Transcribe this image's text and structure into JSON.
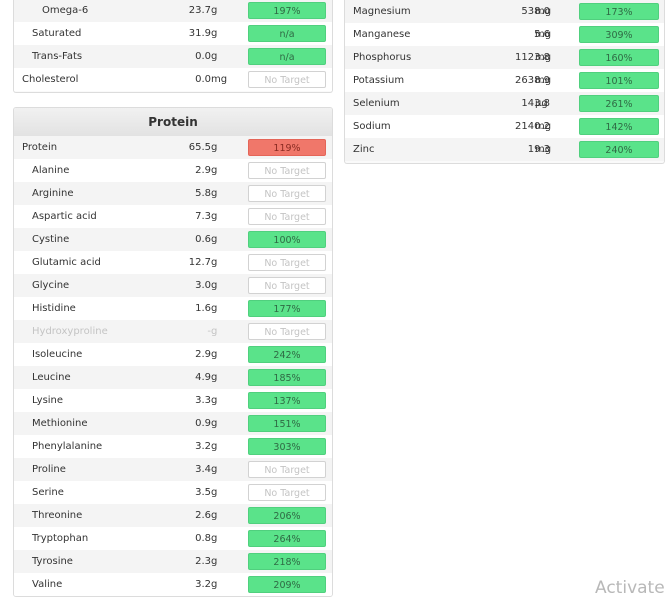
{
  "colors": {
    "green": "#5ae38a",
    "red": "#f0776a",
    "none": "#ffffff"
  },
  "fats": [
    {
      "name": "Omega-6",
      "amount": "23.7",
      "unit": "g",
      "target": "197%",
      "status": "green",
      "level": "subsub"
    },
    {
      "name": "Saturated",
      "amount": "31.9",
      "unit": "g",
      "target": "n/a",
      "status": "green",
      "level": "sub"
    },
    {
      "name": "Trans-Fats",
      "amount": "0.0",
      "unit": "g",
      "target": "n/a",
      "status": "green",
      "level": "sub"
    },
    {
      "name": "Cholesterol",
      "amount": "0.0",
      "unit": "mg",
      "target": "No Target",
      "status": "none",
      "level": "top"
    }
  ],
  "minerals": [
    {
      "name": "Magnesium",
      "amount": "538.0",
      "unit": "mg",
      "target": "173%",
      "status": "green"
    },
    {
      "name": "Manganese",
      "amount": "5.6",
      "unit": "mg",
      "target": "309%",
      "status": "green"
    },
    {
      "name": "Phosphorus",
      "amount": "1123.8",
      "unit": "mg",
      "target": "160%",
      "status": "green"
    },
    {
      "name": "Potassium",
      "amount": "2638.9",
      "unit": "mg",
      "target": "101%",
      "status": "green"
    },
    {
      "name": "Selenium",
      "amount": "143.8",
      "unit": "µg",
      "target": "261%",
      "status": "green"
    },
    {
      "name": "Sodium",
      "amount": "2140.2",
      "unit": "mg",
      "target": "142%",
      "status": "green"
    },
    {
      "name": "Zinc",
      "amount": "19.3",
      "unit": "mg",
      "target": "240%",
      "status": "green"
    }
  ],
  "protein": {
    "title": "Protein",
    "rows": [
      {
        "name": "Protein",
        "amount": "65.5",
        "unit": "g",
        "target": "119%",
        "status": "red",
        "level": "top"
      },
      {
        "name": "Alanine",
        "amount": "2.9",
        "unit": "g",
        "target": "No Target",
        "status": "none",
        "level": "sub"
      },
      {
        "name": "Arginine",
        "amount": "5.8",
        "unit": "g",
        "target": "No Target",
        "status": "none",
        "level": "sub"
      },
      {
        "name": "Aspartic acid",
        "amount": "7.3",
        "unit": "g",
        "target": "No Target",
        "status": "none",
        "level": "sub"
      },
      {
        "name": "Cystine",
        "amount": "0.6",
        "unit": "g",
        "target": "100%",
        "status": "green",
        "level": "sub"
      },
      {
        "name": "Glutamic acid",
        "amount": "12.7",
        "unit": "g",
        "target": "No Target",
        "status": "none",
        "level": "sub"
      },
      {
        "name": "Glycine",
        "amount": "3.0",
        "unit": "g",
        "target": "No Target",
        "status": "none",
        "level": "sub"
      },
      {
        "name": "Histidine",
        "amount": "1.6",
        "unit": "g",
        "target": "177%",
        "status": "green",
        "level": "sub"
      },
      {
        "name": "Hydroxyproline",
        "amount": "-",
        "unit": "g",
        "target": "No Target",
        "status": "none",
        "level": "sub",
        "dim": true
      },
      {
        "name": "Isoleucine",
        "amount": "2.9",
        "unit": "g",
        "target": "242%",
        "status": "green",
        "level": "sub"
      },
      {
        "name": "Leucine",
        "amount": "4.9",
        "unit": "g",
        "target": "185%",
        "status": "green",
        "level": "sub"
      },
      {
        "name": "Lysine",
        "amount": "3.3",
        "unit": "g",
        "target": "137%",
        "status": "green",
        "level": "sub"
      },
      {
        "name": "Methionine",
        "amount": "0.9",
        "unit": "g",
        "target": "151%",
        "status": "green",
        "level": "sub"
      },
      {
        "name": "Phenylalanine",
        "amount": "3.2",
        "unit": "g",
        "target": "303%",
        "status": "green",
        "level": "sub"
      },
      {
        "name": "Proline",
        "amount": "3.4",
        "unit": "g",
        "target": "No Target",
        "status": "none",
        "level": "sub"
      },
      {
        "name": "Serine",
        "amount": "3.5",
        "unit": "g",
        "target": "No Target",
        "status": "none",
        "level": "sub"
      },
      {
        "name": "Threonine",
        "amount": "2.6",
        "unit": "g",
        "target": "206%",
        "status": "green",
        "level": "sub"
      },
      {
        "name": "Tryptophan",
        "amount": "0.8",
        "unit": "g",
        "target": "264%",
        "status": "green",
        "level": "sub"
      },
      {
        "name": "Tyrosine",
        "amount": "2.3",
        "unit": "g",
        "target": "218%",
        "status": "green",
        "level": "sub"
      },
      {
        "name": "Valine",
        "amount": "3.2",
        "unit": "g",
        "target": "209%",
        "status": "green",
        "level": "sub"
      }
    ]
  },
  "watermark": "Activate"
}
